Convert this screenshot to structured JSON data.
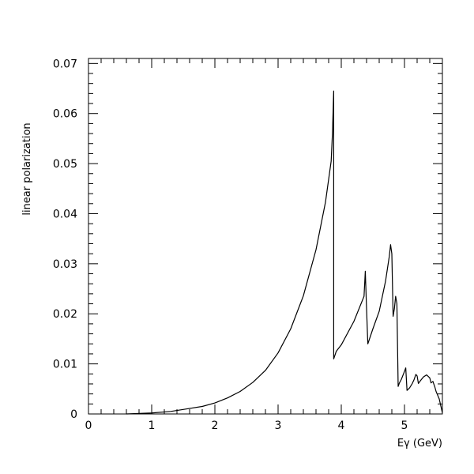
{
  "chart_data": {
    "type": "line",
    "title": "",
    "xlabel": "Eγ (GeV)",
    "ylabel": "linear polarization",
    "xlim": [
      0,
      5.6
    ],
    "ylim": [
      0,
      0.071
    ],
    "x_ticks": [
      0,
      1,
      2,
      3,
      4,
      5
    ],
    "y_ticks": [
      0,
      0.01,
      0.02,
      0.03,
      0.04,
      0.05,
      0.06,
      0.07
    ],
    "x_tick_labels": [
      "0",
      "1",
      "2",
      "3",
      "4",
      "5"
    ],
    "y_tick_labels": [
      "0",
      "0.01",
      "0.02",
      "0.03",
      "0.04",
      "0.05",
      "0.06",
      "0.07"
    ],
    "grid": false,
    "legend": "none",
    "line_color": "#000000",
    "series": [
      {
        "x": [
          0.6,
          1.0,
          1.3,
          1.5,
          1.8,
          2.0,
          2.2,
          2.4,
          2.6,
          2.8,
          3.0,
          3.2,
          3.4,
          3.6,
          3.75,
          3.84,
          3.86,
          3.88,
          3.88,
          3.92,
          4.0,
          4.2,
          4.36,
          4.38,
          4.4,
          4.42,
          4.5,
          4.6,
          4.7,
          4.76,
          4.78,
          4.8,
          4.82,
          4.84,
          4.86,
          4.88,
          4.9,
          4.92,
          4.95,
          5.0,
          5.02,
          5.04,
          5.08,
          5.12,
          5.15,
          5.18,
          5.2,
          5.22,
          5.25,
          5.3,
          5.35,
          5.4,
          5.42,
          5.45,
          5.48,
          5.5,
          5.55,
          5.6
        ],
        "y": [
          0.0,
          0.0002,
          0.0005,
          0.0009,
          0.0015,
          0.0022,
          0.0032,
          0.0045,
          0.0063,
          0.0087,
          0.0122,
          0.017,
          0.0236,
          0.0328,
          0.0423,
          0.0505,
          0.056,
          0.0645,
          0.011,
          0.0125,
          0.0138,
          0.0185,
          0.0235,
          0.0285,
          0.021,
          0.014,
          0.017,
          0.0205,
          0.0265,
          0.0315,
          0.0338,
          0.032,
          0.0195,
          0.021,
          0.0235,
          0.022,
          0.0055,
          0.0062,
          0.0069,
          0.0085,
          0.0092,
          0.0047,
          0.0052,
          0.006,
          0.0068,
          0.0079,
          0.0076,
          0.0061,
          0.0066,
          0.0074,
          0.0078,
          0.0072,
          0.0062,
          0.0065,
          0.0054,
          0.0045,
          0.003,
          0.0002
        ]
      }
    ]
  }
}
